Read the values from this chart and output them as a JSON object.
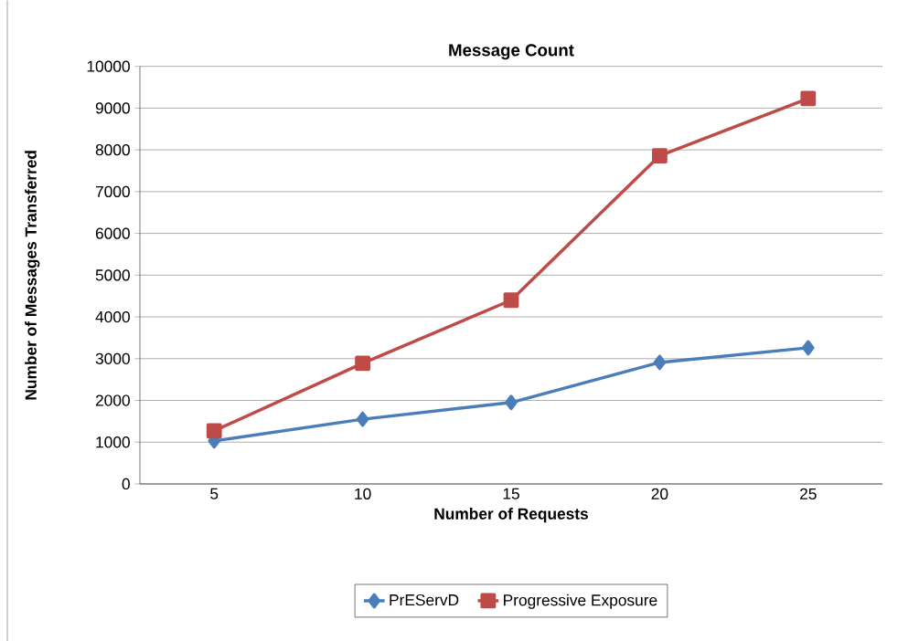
{
  "chart_data": {
    "type": "line",
    "title": "Message Count",
    "xlabel": "Number of Requests",
    "ylabel": "Number of Messages Transferred",
    "categories": [
      "5",
      "10",
      "15",
      "20",
      "25"
    ],
    "series": [
      {
        "name": "PrEServD",
        "color": "#4a7ebb",
        "marker": "diamond",
        "values": [
          1030,
          1550,
          1950,
          2910,
          3260
        ]
      },
      {
        "name": "Progressive Exposure",
        "color": "#be4b48",
        "marker": "square",
        "values": [
          1270,
          2890,
          4400,
          7860,
          9230
        ]
      }
    ],
    "ylim": [
      0,
      10000
    ],
    "yticks": [
      0,
      1000,
      2000,
      3000,
      4000,
      5000,
      6000,
      7000,
      8000,
      9000,
      10000
    ],
    "grid": "y",
    "legend": "bottom",
    "line_style": "solid"
  }
}
